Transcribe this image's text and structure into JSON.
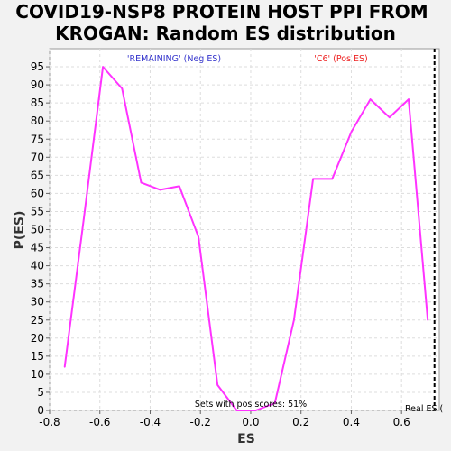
{
  "chart_data": {
    "type": "line",
    "title_line1": "COVID19-NSP8 PROTEIN HOST PPI FROM",
    "title_line2": "KROGAN: Random ES distribution",
    "xlabel": "ES",
    "ylabel": "P(ES)",
    "xlim": [
      -0.8,
      0.75
    ],
    "ylim": [
      0,
      100
    ],
    "xticks": [
      "-0.8",
      "-0.6",
      "-0.4",
      "-0.2",
      "0.0",
      "0.2",
      "0.4",
      "0.6"
    ],
    "yticks": [
      "0",
      "5",
      "10",
      "15",
      "20",
      "25",
      "30",
      "35",
      "40",
      "45",
      "50",
      "55",
      "60",
      "65",
      "70",
      "75",
      "80",
      "85",
      "90",
      "95"
    ],
    "series": [
      {
        "x": [
          -0.74,
          -0.664,
          -0.588,
          -0.512,
          -0.436,
          -0.36,
          -0.284,
          -0.208,
          -0.132,
          -0.056,
          0.02,
          0.096,
          0.172,
          0.248,
          0.324,
          0.4,
          0.476,
          0.552,
          0.628,
          0.704
        ],
        "y": [
          12,
          53,
          95,
          89,
          63,
          61,
          62,
          48,
          7,
          0,
          0,
          2,
          25,
          64,
          64,
          77,
          86,
          81,
          86,
          25
        ],
        "color": "#ff33ff"
      }
    ],
    "real_es": 0.731,
    "real_es_label": "Real ES (",
    "annotations": {
      "neg_label": "'REMAINING' (Neg ES)",
      "pos_label": "'C6' (Pos ES)",
      "pos_scores": "Sets with pos scores: 51%"
    },
    "colors": {
      "line": "#ff33ff",
      "neg": "#3333cc",
      "pos": "#ee2222",
      "grid": "#dddddd"
    },
    "grid": true
  }
}
